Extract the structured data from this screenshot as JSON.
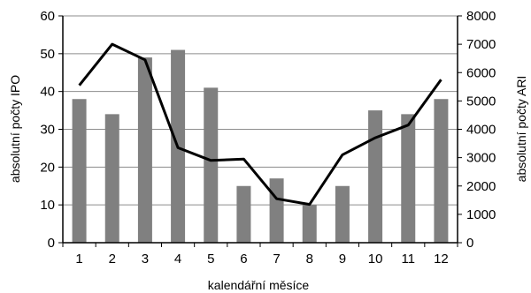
{
  "chart_data": {
    "type": "bar+line",
    "categories": [
      "1",
      "2",
      "3",
      "4",
      "5",
      "6",
      "7",
      "8",
      "9",
      "10",
      "11",
      "12"
    ],
    "series": [
      {
        "name": "",
        "type": "bar",
        "axis": "left",
        "color": "#808080",
        "values": [
          38,
          34,
          49,
          51,
          41,
          15,
          17,
          10,
          15,
          35,
          34,
          38
        ]
      },
      {
        "name": "",
        "type": "line",
        "axis": "right",
        "color": "#000000",
        "values": [
          5550,
          7000,
          6450,
          3350,
          2900,
          2950,
          1550,
          1350,
          3100,
          3700,
          4150,
          5750
        ]
      }
    ],
    "xlabel": "kalendářní měsíce",
    "ylabel_left": "absolutní počty IPO",
    "ylabel_right": "absolutní počty ARI",
    "ylim_left": [
      0,
      60
    ],
    "yticks_left": [
      0,
      10,
      20,
      30,
      40,
      50,
      60
    ],
    "ylim_right": [
      0,
      8000
    ],
    "yticks_right": [
      0,
      1000,
      2000,
      3000,
      4000,
      5000,
      6000,
      7000,
      8000
    ],
    "grid": "horizontal"
  }
}
